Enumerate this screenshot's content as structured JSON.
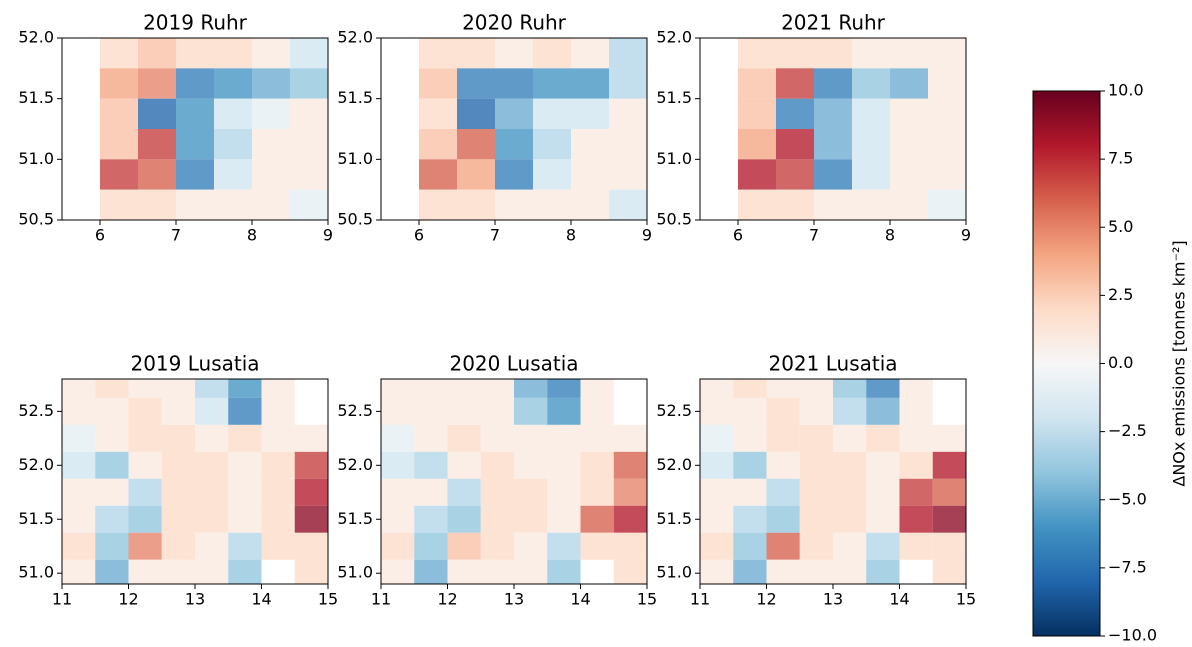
{
  "chart_data": [
    {
      "type": "heatmap",
      "title": "2019 Ruhr",
      "xlim": [
        5.5,
        9
      ],
      "xticks": [
        6,
        7,
        8,
        9
      ],
      "ylim": [
        50.5,
        52
      ],
      "yticks": [
        {
          "value": 50.5,
          "label": "50.5"
        },
        {
          "value": 51,
          "label": "51.0"
        },
        {
          "value": 51.5,
          "label": "51.5"
        },
        {
          "value": 52,
          "label": "52.0"
        }
      ],
      "x": [
        5.75,
        6.25,
        6.75,
        7.25,
        7.75,
        8.25,
        8.75
      ],
      "y": [
        51.875,
        51.625,
        51.375,
        51.125,
        50.875,
        50.625
      ],
      "values": [
        [
          null,
          2,
          3,
          2,
          2,
          1,
          -2
        ],
        [
          null,
          4,
          5,
          -7,
          -6,
          -5,
          -4
        ],
        [
          null,
          3,
          -8,
          -6,
          -2,
          -1,
          1
        ],
        [
          null,
          3,
          7,
          -6,
          -3,
          1,
          1
        ],
        [
          null,
          7,
          6,
          -7,
          -2,
          1,
          1
        ],
        [
          null,
          2,
          2,
          1,
          1,
          1,
          -1
        ]
      ]
    },
    {
      "type": "heatmap",
      "title": "2020 Ruhr",
      "xlim": [
        5.5,
        9
      ],
      "xticks": [
        6,
        7,
        8,
        9
      ],
      "ylim": [
        50.5,
        52
      ],
      "yticks": [
        {
          "value": 50.5,
          "label": "50.5"
        },
        {
          "value": 51,
          "label": "51.0"
        },
        {
          "value": 51.5,
          "label": "51.5"
        },
        {
          "value": 52,
          "label": "52.0"
        }
      ],
      "x": [
        5.75,
        6.25,
        6.75,
        7.25,
        7.75,
        8.25,
        8.75
      ],
      "y": [
        51.875,
        51.625,
        51.375,
        51.125,
        50.875,
        50.625
      ],
      "values": [
        [
          null,
          2,
          2,
          1,
          2,
          1,
          -3
        ],
        [
          null,
          3,
          -7,
          -7,
          -6,
          -6,
          -3
        ],
        [
          null,
          2,
          -8,
          -5,
          -2,
          -2,
          1
        ],
        [
          null,
          3,
          6,
          -6,
          -3,
          1,
          1
        ],
        [
          null,
          6,
          4,
          -7,
          -2,
          1,
          1
        ],
        [
          null,
          2,
          2,
          1,
          1,
          1,
          -2
        ]
      ]
    },
    {
      "type": "heatmap",
      "title": "2021 Ruhr",
      "xlim": [
        5.5,
        9
      ],
      "xticks": [
        6,
        7,
        8,
        9
      ],
      "ylim": [
        50.5,
        52
      ],
      "yticks": [
        {
          "value": 50.5,
          "label": "50.5"
        },
        {
          "value": 51,
          "label": "51.0"
        },
        {
          "value": 51.5,
          "label": "51.5"
        },
        {
          "value": 52,
          "label": "52.0"
        }
      ],
      "x": [
        5.75,
        6.25,
        6.75,
        7.25,
        7.75,
        8.25,
        8.75
      ],
      "y": [
        51.875,
        51.625,
        51.375,
        51.125,
        50.875,
        50.625
      ],
      "values": [
        [
          null,
          2,
          2,
          2,
          1,
          1,
          1
        ],
        [
          null,
          3,
          7,
          -7,
          -4,
          -5,
          1
        ],
        [
          null,
          3,
          -7,
          -5,
          -2,
          1,
          1
        ],
        [
          null,
          4,
          8,
          -5,
          -2,
          1,
          1
        ],
        [
          null,
          8,
          7,
          -7,
          -2,
          1,
          1
        ],
        [
          null,
          2,
          2,
          1,
          1,
          1,
          -1
        ]
      ]
    },
    {
      "type": "heatmap",
      "title": "2019 Lusatia",
      "xlim": [
        11,
        15
      ],
      "xticks": [
        11,
        12,
        13,
        14,
        15
      ],
      "ylim": [
        50.9,
        52.8
      ],
      "yticks": [
        {
          "value": 51,
          "label": "51.0"
        },
        {
          "value": 51.5,
          "label": "51.5"
        },
        {
          "value": 52,
          "label": "52.0"
        },
        {
          "value": 52.5,
          "label": "52.5"
        }
      ],
      "x": [
        11.25,
        11.75,
        12.25,
        12.75,
        13.25,
        13.75,
        14.25,
        14.75
      ],
      "y": [
        52.75,
        52.5,
        52.25,
        52.0,
        51.75,
        51.5,
        51.25,
        51.0
      ],
      "values": [
        [
          1,
          2,
          1,
          1,
          -3,
          -6,
          1,
          null
        ],
        [
          1,
          1,
          2,
          1,
          -2,
          -7,
          1,
          null
        ],
        [
          -1,
          1,
          2,
          2,
          1,
          2,
          1,
          1
        ],
        [
          -2,
          -4,
          1,
          2,
          2,
          1,
          2,
          7
        ],
        [
          1,
          1,
          -3,
          2,
          2,
          1,
          2,
          8
        ],
        [
          1,
          -3,
          -4,
          2,
          2,
          1,
          2,
          9
        ],
        [
          2,
          -4,
          5,
          2,
          1,
          -3,
          2,
          2
        ],
        [
          1,
          -5,
          1,
          1,
          1,
          -4,
          null,
          2
        ]
      ]
    },
    {
      "type": "heatmap",
      "title": "2020 Lusatia",
      "xlim": [
        11,
        15
      ],
      "xticks": [
        11,
        12,
        13,
        14,
        15
      ],
      "ylim": [
        50.9,
        52.8
      ],
      "yticks": [
        {
          "value": 51,
          "label": "51.0"
        },
        {
          "value": 51.5,
          "label": "51.5"
        },
        {
          "value": 52,
          "label": "52.0"
        },
        {
          "value": 52.5,
          "label": "52.5"
        }
      ],
      "x": [
        11.25,
        11.75,
        12.25,
        12.75,
        13.25,
        13.75,
        14.25,
        14.75
      ],
      "y": [
        52.75,
        52.5,
        52.25,
        52.0,
        51.75,
        51.5,
        51.25,
        51.0
      ],
      "values": [
        [
          1,
          1,
          1,
          1,
          -5,
          -7,
          1,
          null
        ],
        [
          1,
          1,
          1,
          1,
          -4,
          -6,
          1,
          null
        ],
        [
          -1,
          1,
          2,
          1,
          1,
          1,
          1,
          1
        ],
        [
          -2,
          -3,
          1,
          2,
          1,
          1,
          2,
          6
        ],
        [
          1,
          1,
          -3,
          2,
          2,
          1,
          2,
          5
        ],
        [
          1,
          -3,
          -4,
          2,
          2,
          1,
          6,
          8
        ],
        [
          2,
          -4,
          3,
          2,
          1,
          -3,
          2,
          2
        ],
        [
          1,
          -5,
          1,
          1,
          1,
          -4,
          null,
          2
        ]
      ]
    },
    {
      "type": "heatmap",
      "title": "2021 Lusatia",
      "xlim": [
        11,
        15
      ],
      "xticks": [
        11,
        12,
        13,
        14,
        15
      ],
      "ylim": [
        50.9,
        52.8
      ],
      "yticks": [
        {
          "value": 51,
          "label": "51.0"
        },
        {
          "value": 51.5,
          "label": "51.5"
        },
        {
          "value": 52,
          "label": "52.0"
        },
        {
          "value": 52.5,
          "label": "52.5"
        }
      ],
      "x": [
        11.25,
        11.75,
        12.25,
        12.75,
        13.25,
        13.75,
        14.25,
        14.75
      ],
      "y": [
        52.75,
        52.5,
        52.25,
        52.0,
        51.75,
        51.5,
        51.25,
        51.0
      ],
      "values": [
        [
          1,
          2,
          1,
          1,
          -4,
          -7,
          1,
          null
        ],
        [
          1,
          1,
          2,
          1,
          -3,
          -5,
          1,
          null
        ],
        [
          -1,
          1,
          2,
          2,
          1,
          2,
          1,
          1
        ],
        [
          -2,
          -4,
          1,
          2,
          2,
          1,
          2,
          8
        ],
        [
          1,
          1,
          -3,
          2,
          2,
          1,
          7,
          6
        ],
        [
          1,
          -3,
          -4,
          2,
          2,
          1,
          8,
          9
        ],
        [
          2,
          -4,
          6,
          2,
          1,
          -3,
          2,
          2
        ],
        [
          1,
          -5,
          1,
          1,
          1,
          -4,
          null,
          2
        ]
      ]
    },
    {
      "type": "colorbar",
      "label": "ΔNOx emissions [tonnes km⁻²]",
      "lim": [
        -10,
        10
      ],
      "ticks": [
        {
          "value": -10,
          "label": "−10.0"
        },
        {
          "value": -7.5,
          "label": "−7.5"
        },
        {
          "value": -5,
          "label": "−5.0"
        },
        {
          "value": -2.5,
          "label": "−2.5"
        },
        {
          "value": 0,
          "label": "0.0"
        },
        {
          "value": 2.5,
          "label": "2.5"
        },
        {
          "value": 5,
          "label": "5.0"
        },
        {
          "value": 7.5,
          "label": "7.5"
        },
        {
          "value": 10,
          "label": "10.0"
        }
      ],
      "colormap": [
        "#053061",
        "#2166ac",
        "#4393c3",
        "#92c5de",
        "#d1e5f0",
        "#f7f7f7",
        "#fddbc7",
        "#f4a582",
        "#d6604d",
        "#b2182b",
        "#67001f"
      ]
    }
  ]
}
